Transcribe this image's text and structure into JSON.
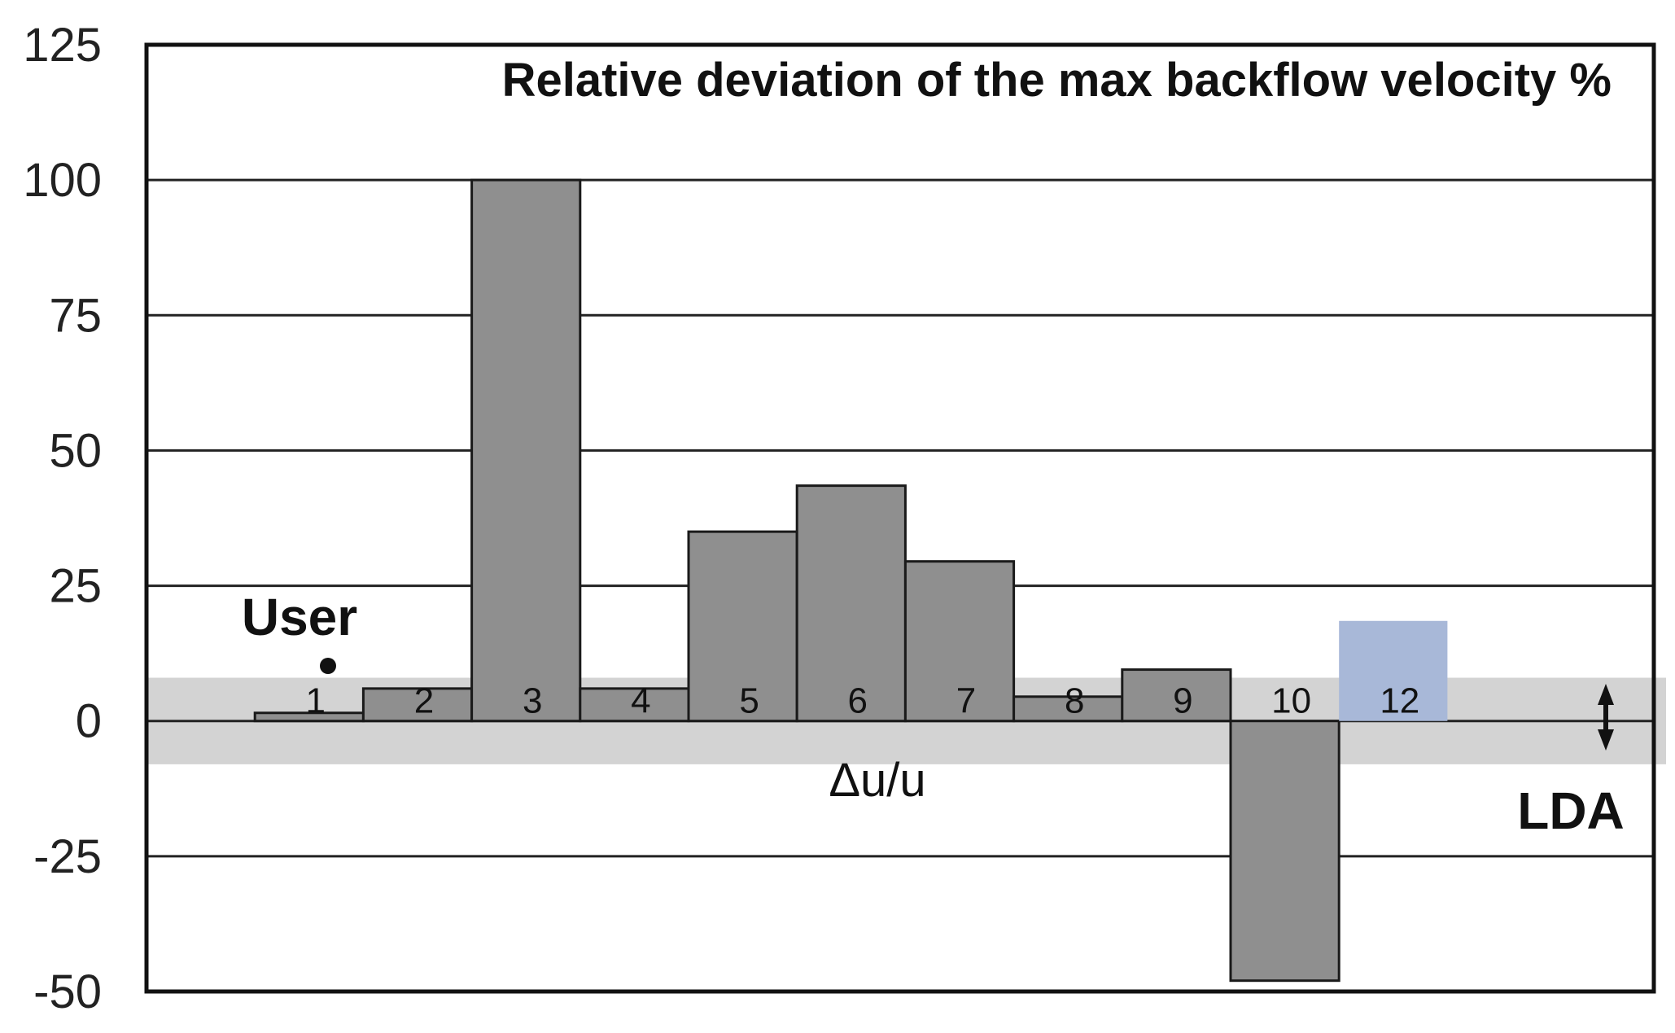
{
  "chart_data": {
    "type": "bar",
    "title": "Relative deviation of the max backflow velocity %",
    "xlabel": "",
    "ylabel": "",
    "categories": [
      "User",
      "1",
      "2",
      "3",
      "4",
      "5",
      "6",
      "7",
      "8",
      "9",
      "10",
      "12",
      "LDA"
    ],
    "category_labels": [
      "",
      "1",
      "2",
      "3",
      "4",
      "5",
      "6",
      "7",
      "8",
      "9",
      "10",
      "12",
      ""
    ],
    "values": [
      null,
      1.5,
      6,
      100,
      6,
      35,
      43.5,
      29.5,
      4.5,
      9.5,
      -48,
      18.5,
      null
    ],
    "highlight_index": 11,
    "ylim": [
      -50,
      125
    ],
    "yticks": [
      125,
      100,
      75,
      50,
      25,
      0,
      -25,
      -50
    ],
    "grid": true,
    "band": {
      "from": -8,
      "to": 8
    },
    "annotations": {
      "user": "User",
      "delta": "Δu/u",
      "lda": "LDA"
    },
    "colors": {
      "bar": "#8f8f8f",
      "highlight": "#a8b8d8",
      "band": "#d3d3d3",
      "grid": "#222222",
      "frame": "#111111"
    }
  }
}
